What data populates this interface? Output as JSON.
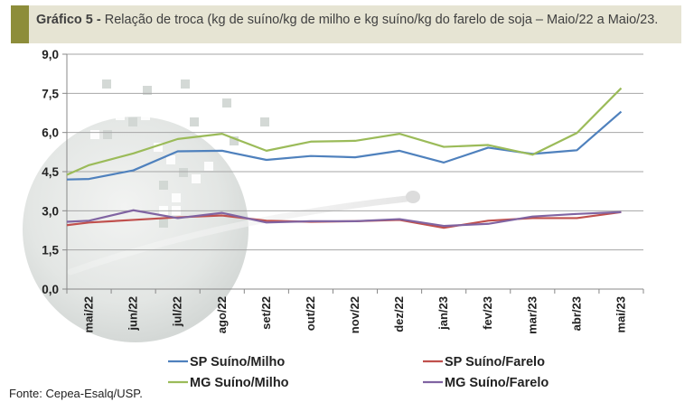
{
  "header": {
    "title_bold": "Gráfico 5 -",
    "title_rest": " Relação de troca (kg de suíno/kg de milho e kg suíno/kg do farelo de soja – Maio/22 a Maio/23."
  },
  "source": "Fonte: Cepea-Esalq/USP.",
  "chart_data": {
    "type": "line",
    "categories": [
      "mai/22",
      "jun/22",
      "jul/22",
      "ago/22",
      "set/22",
      "out/22",
      "nov/22",
      "dez/22",
      "jan/23",
      "fev/23",
      "mar/23",
      "abr/23",
      "mai/23"
    ],
    "ylim": [
      0,
      9
    ],
    "yticks": [
      "0,0",
      "1,5",
      "3,0",
      "4,5",
      "6,0",
      "7,5",
      "9,0"
    ],
    "ytick_values": [
      0,
      1.5,
      3,
      4.5,
      6,
      7.5,
      9
    ],
    "grid": true,
    "legend_position": "bottom",
    "series": [
      {
        "name": "SP Suíno/Milho",
        "color": "#4f81bd",
        "values": [
          4.22,
          4.55,
          5.28,
          5.3,
          4.95,
          5.1,
          5.05,
          5.3,
          4.85,
          5.42,
          5.18,
          5.32,
          6.8
        ],
        "start": 4.2
      },
      {
        "name": "SP Suíno/Farelo",
        "color": "#c0504d",
        "values": [
          2.55,
          2.65,
          2.75,
          2.82,
          2.62,
          2.58,
          2.6,
          2.65,
          2.35,
          2.62,
          2.72,
          2.72,
          2.95
        ],
        "start": 2.45
      },
      {
        "name": "MG Suíno/Milho",
        "color": "#9bbb59",
        "values": [
          4.75,
          5.2,
          5.75,
          5.95,
          5.3,
          5.65,
          5.68,
          5.95,
          5.45,
          5.52,
          5.15,
          5.98,
          7.7
        ],
        "start": 4.38
      },
      {
        "name": "MG Suíno/Farelo",
        "color": "#8064a2",
        "values": [
          2.62,
          3.02,
          2.72,
          2.92,
          2.55,
          2.6,
          2.6,
          2.68,
          2.42,
          2.5,
          2.78,
          2.88,
          2.95
        ],
        "start": 2.58
      }
    ]
  }
}
